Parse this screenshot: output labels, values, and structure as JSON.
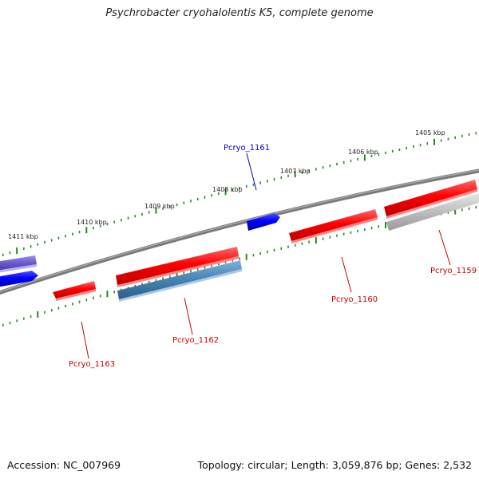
{
  "title": "Psychrobacter cryohalolentis K5, complete genome",
  "footer": {
    "accession": "Accession: NC_007969",
    "summary": "Topology: circular; Length: 3,059,876 bp; Genes: 2,532"
  },
  "ticks": [
    "1411 kbp",
    "1410 kbp",
    "1409 kbp",
    "1408 kbp",
    "1407 kbp",
    "1406 kbp",
    "1405 kbp"
  ],
  "genes": [
    {
      "name": "Pcryo_1163",
      "color": "#cc0000"
    },
    {
      "name": "Pcryo_1162",
      "color": "#cc0000"
    },
    {
      "name": "Pcryo_1161",
      "color": "#0000cc"
    },
    {
      "name": "Pcryo_1160",
      "color": "#cc0000"
    },
    {
      "name": "Pcryo_1159",
      "color": "#cc0000"
    }
  ],
  "colors": {
    "backbone": "#808080",
    "tick": "#228b22",
    "red_feature": "#ff0000",
    "blue_feature": "#0000ff",
    "steelblue_feature": "#4682b4",
    "purple_feature": "#6a5acd",
    "grey_feature": "#bdbdbd"
  }
}
